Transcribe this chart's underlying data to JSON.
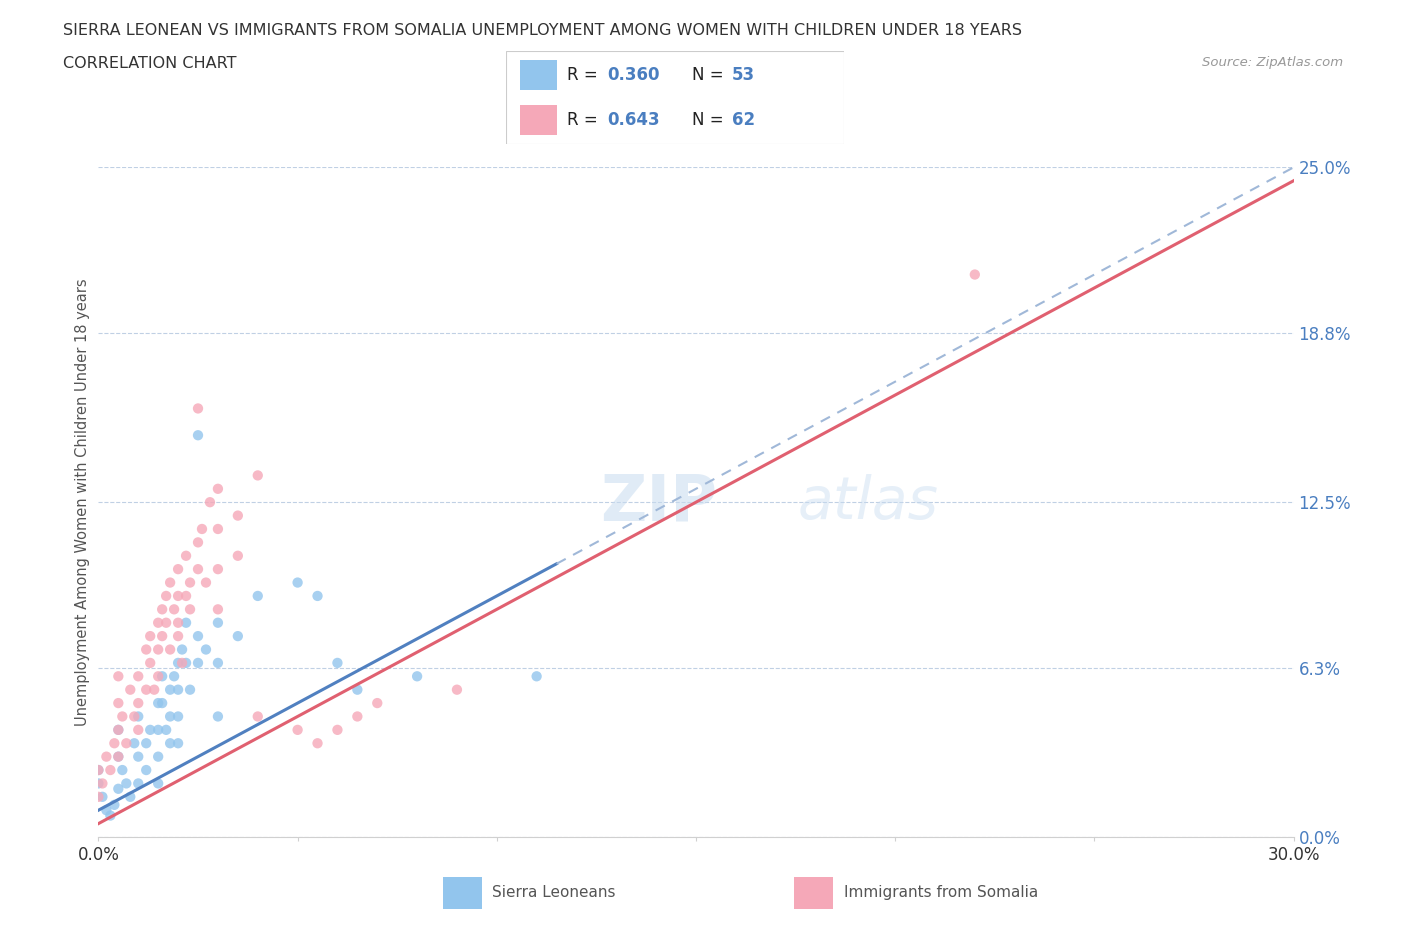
{
  "title_line1": "SIERRA LEONEAN VS IMMIGRANTS FROM SOMALIA UNEMPLOYMENT AMONG WOMEN WITH CHILDREN UNDER 18 YEARS",
  "title_line2": "CORRELATION CHART",
  "source": "Source: ZipAtlas.com",
  "ylabel": "Unemployment Among Women with Children Under 18 years",
  "xlim": [
    0.0,
    0.3
  ],
  "ylim": [
    0.0,
    0.25
  ],
  "ytick_vals": [
    0.0,
    0.063,
    0.125,
    0.188,
    0.25
  ],
  "ytick_labels": [
    "0.0%",
    "6.3%",
    "12.5%",
    "18.8%",
    "25.0%"
  ],
  "xtick_vals": [
    0.0,
    0.05,
    0.1,
    0.15,
    0.2,
    0.25,
    0.3
  ],
  "xtick_labels": [
    "0.0%",
    "",
    "",
    "",
    "",
    "",
    "30.0%"
  ],
  "legend_label1": "Sierra Leoneans",
  "legend_label2": "Immigrants from Somalia",
  "color_sl": "#92C5ED",
  "color_somalia": "#F5A8B8",
  "line_color_sl": "#5080C0",
  "line_color_somalia": "#E06070",
  "watermark_zip": "ZIP",
  "watermark_atlas": "atlas",
  "R_sl": 0.36,
  "N_sl": 53,
  "R_somalia": 0.643,
  "N_somalia": 62,
  "sl_line_x": [
    0.0,
    0.3
  ],
  "sl_line_y": [
    0.01,
    0.25
  ],
  "sl_line_solid_end": 0.115,
  "som_line_x": [
    0.0,
    0.3
  ],
  "som_line_y": [
    0.005,
    0.245
  ],
  "scatter_sl": [
    [
      0.0,
      0.025
    ],
    [
      0.0,
      0.02
    ],
    [
      0.001,
      0.015
    ],
    [
      0.002,
      0.01
    ],
    [
      0.003,
      0.008
    ],
    [
      0.004,
      0.012
    ],
    [
      0.005,
      0.018
    ],
    [
      0.005,
      0.03
    ],
    [
      0.005,
      0.04
    ],
    [
      0.006,
      0.025
    ],
    [
      0.007,
      0.02
    ],
    [
      0.008,
      0.015
    ],
    [
      0.009,
      0.035
    ],
    [
      0.01,
      0.045
    ],
    [
      0.01,
      0.03
    ],
    [
      0.01,
      0.02
    ],
    [
      0.012,
      0.035
    ],
    [
      0.012,
      0.025
    ],
    [
      0.013,
      0.04
    ],
    [
      0.015,
      0.05
    ],
    [
      0.015,
      0.04
    ],
    [
      0.015,
      0.03
    ],
    [
      0.015,
      0.02
    ],
    [
      0.016,
      0.06
    ],
    [
      0.016,
      0.05
    ],
    [
      0.017,
      0.04
    ],
    [
      0.018,
      0.055
    ],
    [
      0.018,
      0.045
    ],
    [
      0.018,
      0.035
    ],
    [
      0.019,
      0.06
    ],
    [
      0.02,
      0.065
    ],
    [
      0.02,
      0.055
    ],
    [
      0.02,
      0.045
    ],
    [
      0.02,
      0.035
    ],
    [
      0.021,
      0.07
    ],
    [
      0.022,
      0.08
    ],
    [
      0.022,
      0.065
    ],
    [
      0.023,
      0.055
    ],
    [
      0.025,
      0.075
    ],
    [
      0.025,
      0.065
    ],
    [
      0.025,
      0.15
    ],
    [
      0.027,
      0.07
    ],
    [
      0.03,
      0.08
    ],
    [
      0.03,
      0.065
    ],
    [
      0.03,
      0.045
    ],
    [
      0.035,
      0.075
    ],
    [
      0.04,
      0.09
    ],
    [
      0.05,
      0.095
    ],
    [
      0.055,
      0.09
    ],
    [
      0.06,
      0.065
    ],
    [
      0.065,
      0.055
    ],
    [
      0.08,
      0.06
    ],
    [
      0.11,
      0.06
    ]
  ],
  "scatter_somalia": [
    [
      0.0,
      0.015
    ],
    [
      0.0,
      0.025
    ],
    [
      0.001,
      0.02
    ],
    [
      0.002,
      0.03
    ],
    [
      0.003,
      0.025
    ],
    [
      0.004,
      0.035
    ],
    [
      0.005,
      0.03
    ],
    [
      0.005,
      0.04
    ],
    [
      0.005,
      0.05
    ],
    [
      0.005,
      0.06
    ],
    [
      0.006,
      0.045
    ],
    [
      0.007,
      0.035
    ],
    [
      0.008,
      0.055
    ],
    [
      0.009,
      0.045
    ],
    [
      0.01,
      0.06
    ],
    [
      0.01,
      0.05
    ],
    [
      0.01,
      0.04
    ],
    [
      0.012,
      0.07
    ],
    [
      0.012,
      0.055
    ],
    [
      0.013,
      0.065
    ],
    [
      0.013,
      0.075
    ],
    [
      0.014,
      0.055
    ],
    [
      0.015,
      0.08
    ],
    [
      0.015,
      0.07
    ],
    [
      0.015,
      0.06
    ],
    [
      0.016,
      0.085
    ],
    [
      0.016,
      0.075
    ],
    [
      0.017,
      0.09
    ],
    [
      0.017,
      0.08
    ],
    [
      0.018,
      0.07
    ],
    [
      0.018,
      0.095
    ],
    [
      0.019,
      0.085
    ],
    [
      0.02,
      0.1
    ],
    [
      0.02,
      0.09
    ],
    [
      0.02,
      0.08
    ],
    [
      0.02,
      0.075
    ],
    [
      0.021,
      0.065
    ],
    [
      0.022,
      0.105
    ],
    [
      0.022,
      0.09
    ],
    [
      0.023,
      0.095
    ],
    [
      0.023,
      0.085
    ],
    [
      0.025,
      0.11
    ],
    [
      0.025,
      0.1
    ],
    [
      0.025,
      0.16
    ],
    [
      0.026,
      0.115
    ],
    [
      0.027,
      0.095
    ],
    [
      0.028,
      0.125
    ],
    [
      0.03,
      0.13
    ],
    [
      0.03,
      0.115
    ],
    [
      0.03,
      0.1
    ],
    [
      0.03,
      0.085
    ],
    [
      0.035,
      0.12
    ],
    [
      0.035,
      0.105
    ],
    [
      0.04,
      0.135
    ],
    [
      0.04,
      0.045
    ],
    [
      0.05,
      0.04
    ],
    [
      0.055,
      0.035
    ],
    [
      0.06,
      0.04
    ],
    [
      0.065,
      0.045
    ],
    [
      0.07,
      0.05
    ],
    [
      0.22,
      0.21
    ],
    [
      0.09,
      0.055
    ]
  ]
}
